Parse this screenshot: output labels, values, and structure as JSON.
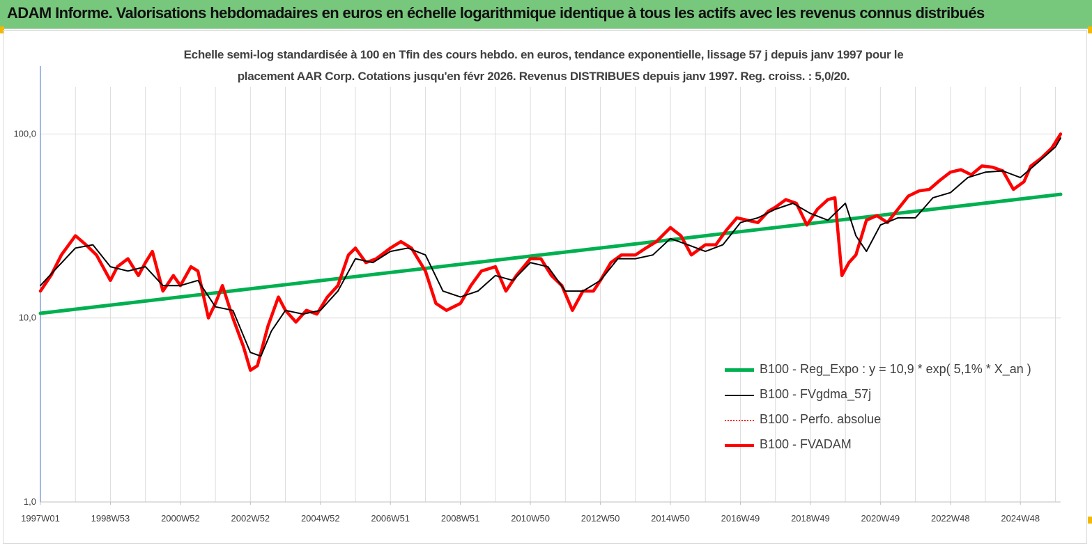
{
  "banner": {
    "title": "ADAM Informe. Valorisations hebdomadaires en euros en échelle logarithmique identique à tous les actifs avec les revenus connus distribués",
    "color": "#77c87c"
  },
  "chart_data": {
    "type": "line",
    "subtitle_line1": "Echelle semi-log standardisée à 100 en Tfin des cours hebdo. en euros, tendance exponentielle, lissage 57 j depuis janv 1997 pour le",
    "subtitle_line2": "placement AAR Corp. Cotations jusqu'en févr 2026. Revenus DISTRIBUES depuis janv 1997.  Reg. croiss. : 5,0/20.",
    "y_scale": "log",
    "ylim": [
      1,
      180
    ],
    "y_ticks": [
      {
        "value": 1,
        "label": "1,0"
      },
      {
        "value": 10,
        "label": "10,0"
      },
      {
        "value": 100,
        "label": "100,0"
      }
    ],
    "xlim": [
      1997.0,
      2026.15
    ],
    "x_ticks": [
      {
        "value": 1997.0,
        "label": "1997W01"
      },
      {
        "value": 1999.0,
        "label": "1998W53"
      },
      {
        "value": 2001.0,
        "label": "2000W52"
      },
      {
        "value": 2003.0,
        "label": "2002W52"
      },
      {
        "value": 2005.0,
        "label": "2004W52"
      },
      {
        "value": 2007.0,
        "label": "2006W51"
      },
      {
        "value": 2009.0,
        "label": "2008W51"
      },
      {
        "value": 2011.0,
        "label": "2010W50"
      },
      {
        "value": 2013.0,
        "label": "2012W50"
      },
      {
        "value": 2015.0,
        "label": "2014W50"
      },
      {
        "value": 2017.0,
        "label": "2016W49"
      },
      {
        "value": 2019.0,
        "label": "2018W49"
      },
      {
        "value": 2021.0,
        "label": "2020W49"
      },
      {
        "value": 2023.0,
        "label": "2022W48"
      },
      {
        "value": 2025.0,
        "label": "2024W48"
      }
    ],
    "grid": "vertical",
    "legend_position": "bottom-right",
    "series": [
      {
        "name": "B100 - Reg_Expo : y = 10,9 *  exp( 5,1% *  X_an )",
        "color": "#00b050",
        "style": "solid-thick",
        "x": [
          1997.0,
          2026.15
        ],
        "y": [
          10.6,
          47.0
        ]
      },
      {
        "name": "B100 - FVgdma_57j",
        "color": "#000000",
        "style": "solid",
        "x": [
          1997.0,
          1997.5,
          1998.0,
          1998.5,
          1999.0,
          1999.5,
          2000.0,
          2000.5,
          2001.0,
          2001.5,
          2002.0,
          2002.5,
          2003.0,
          2003.3,
          2003.6,
          2004.0,
          2004.5,
          2005.0,
          2005.5,
          2006.0,
          2006.5,
          2007.0,
          2007.5,
          2008.0,
          2008.5,
          2009.0,
          2009.5,
          2010.0,
          2010.5,
          2011.0,
          2011.5,
          2012.0,
          2012.5,
          2013.0,
          2013.5,
          2014.0,
          2014.5,
          2015.0,
          2015.5,
          2016.0,
          2016.5,
          2017.0,
          2017.5,
          2018.0,
          2018.5,
          2019.0,
          2019.5,
          2020.0,
          2020.3,
          2020.6,
          2021.0,
          2021.5,
          2022.0,
          2022.5,
          2023.0,
          2023.5,
          2024.0,
          2024.5,
          2025.0,
          2025.5,
          2026.0,
          2026.15
        ],
        "y": [
          15,
          19,
          24,
          25,
          19,
          18,
          19,
          15,
          15,
          16,
          11.5,
          11,
          6.5,
          6.2,
          8.5,
          11,
          10.5,
          11,
          14,
          21,
          20,
          23,
          24,
          22,
          14,
          13,
          14,
          17,
          16,
          20,
          19,
          14,
          14,
          16,
          21,
          21,
          22,
          27,
          25,
          23,
          25,
          33,
          35,
          39,
          42,
          37,
          34,
          42,
          28,
          23,
          32,
          35,
          35,
          45,
          48,
          58,
          62,
          63,
          58,
          70,
          85,
          95
        ]
      },
      {
        "name": "B100 - Perfo. absolue",
        "color": "#ff0000",
        "style": "dotted",
        "x": [],
        "y": []
      },
      {
        "name": "B100 - FVADAM",
        "color": "#ff0000",
        "style": "solid-thick",
        "x": [
          1997.0,
          1997.3,
          1997.6,
          1998.0,
          1998.3,
          1998.6,
          1999.0,
          1999.2,
          1999.5,
          1999.8,
          2000.0,
          2000.2,
          2000.5,
          2000.8,
          2001.0,
          2001.3,
          2001.5,
          2001.8,
          2002.0,
          2002.2,
          2002.5,
          2002.8,
          2003.0,
          2003.2,
          2003.5,
          2003.8,
          2004.0,
          2004.3,
          2004.6,
          2004.9,
          2005.2,
          2005.5,
          2005.8,
          2006.0,
          2006.3,
          2006.6,
          2007.0,
          2007.3,
          2007.6,
          2008.0,
          2008.3,
          2008.6,
          2009.0,
          2009.3,
          2009.6,
          2010.0,
          2010.3,
          2010.6,
          2011.0,
          2011.3,
          2011.6,
          2011.9,
          2012.2,
          2012.5,
          2012.8,
          2013.0,
          2013.3,
          2013.6,
          2014.0,
          2014.3,
          2014.6,
          2015.0,
          2015.3,
          2015.6,
          2016.0,
          2016.3,
          2016.6,
          2016.9,
          2017.2,
          2017.5,
          2017.8,
          2018.0,
          2018.3,
          2018.6,
          2018.9,
          2019.2,
          2019.5,
          2019.7,
          2019.9,
          2020.1,
          2020.3,
          2020.6,
          2020.9,
          2021.2,
          2021.5,
          2021.8,
          2022.1,
          2022.4,
          2022.7,
          2023.0,
          2023.3,
          2023.6,
          2023.9,
          2024.2,
          2024.5,
          2024.8,
          2025.1,
          2025.3,
          2025.6,
          2025.9,
          2026.15
        ],
        "y": [
          14,
          17,
          22,
          28,
          25,
          22,
          16,
          19,
          21,
          17,
          20,
          23,
          14,
          17,
          15,
          19,
          18,
          10,
          12,
          15,
          10,
          7,
          5.2,
          5.5,
          9,
          13,
          11,
          9.5,
          11,
          10.5,
          13,
          15,
          22,
          24,
          20,
          21,
          24,
          26,
          24,
          18,
          12,
          11,
          12,
          15,
          18,
          19,
          14,
          17,
          21,
          21,
          17,
          15,
          11,
          14,
          14,
          16,
          20,
          22,
          22,
          24,
          26,
          31,
          28,
          22,
          25,
          25,
          30,
          35,
          34,
          33,
          38,
          40,
          44,
          42,
          32,
          39,
          44,
          45,
          17,
          20,
          22,
          34,
          36,
          33,
          39,
          46,
          49,
          50,
          56,
          62,
          64,
          60,
          67,
          66,
          63,
          50,
          55,
          67,
          74,
          84,
          100
        ]
      }
    ]
  }
}
